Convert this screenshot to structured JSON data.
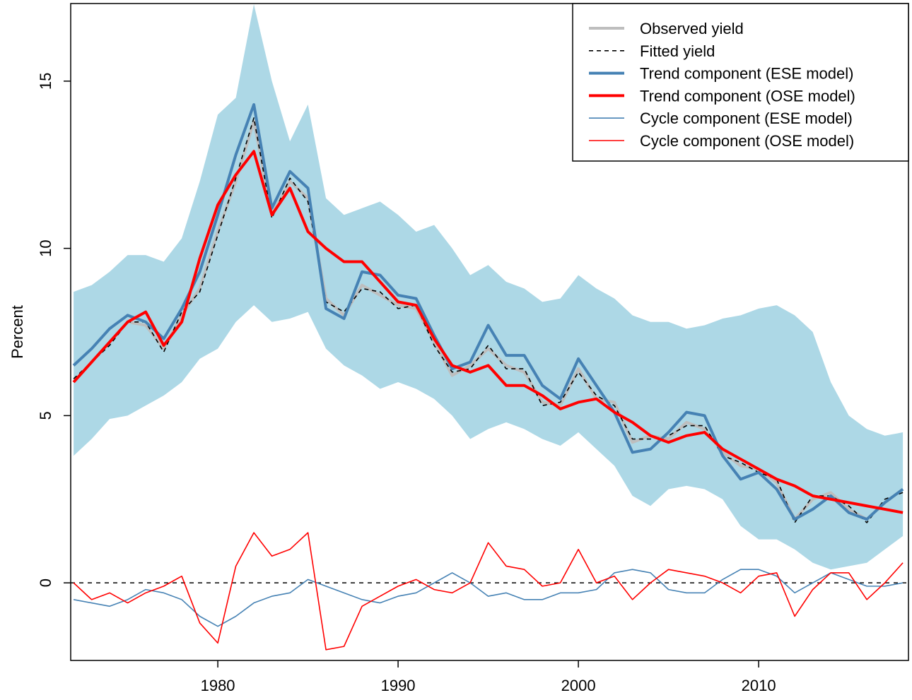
{
  "chart_data": {
    "type": "line",
    "y_label": "Percent",
    "xlim": [
      1971.84,
      2018.31
    ],
    "ylim": [
      -2.32,
      17.32
    ],
    "xticks": [
      1980,
      1990,
      2000,
      2010
    ],
    "yticks": [
      0,
      5,
      10,
      15
    ],
    "hline": 0,
    "legend": "top-right",
    "x": [
      1972,
      1973,
      1974,
      1975,
      1976,
      1977,
      1978,
      1979,
      1980,
      1981,
      1982,
      1983,
      1984,
      1985,
      1986,
      1987,
      1988,
      1989,
      1990,
      1991,
      1992,
      1993,
      1994,
      1995,
      1996,
      1997,
      1998,
      1999,
      2000,
      2001,
      2002,
      2003,
      2004,
      2005,
      2006,
      2007,
      2008,
      2009,
      2010,
      2011,
      2012,
      2013,
      2014,
      2015,
      2016,
      2017,
      2018
    ],
    "band": {
      "color": "#add8e6",
      "upper": [
        8.7,
        8.9,
        9.3,
        9.8,
        9.8,
        9.6,
        10.3,
        12.0,
        14.0,
        14.5,
        17.3,
        15.0,
        13.2,
        14.3,
        11.5,
        11.0,
        11.2,
        11.4,
        11.0,
        10.5,
        10.7,
        10.0,
        9.2,
        9.5,
        9.0,
        8.8,
        8.4,
        8.5,
        9.2,
        8.8,
        8.5,
        8.0,
        7.8,
        7.8,
        7.6,
        7.7,
        7.9,
        8.0,
        8.2,
        8.3,
        8.0,
        7.5,
        6.0,
        5.0,
        4.6,
        4.4,
        4.5
      ],
      "lower": [
        3.8,
        4.3,
        4.9,
        5.0,
        5.3,
        5.6,
        6.0,
        6.7,
        7.0,
        7.8,
        8.3,
        7.8,
        7.9,
        8.1,
        7.0,
        6.5,
        6.2,
        5.8,
        6.0,
        5.8,
        5.5,
        5.0,
        4.3,
        4.6,
        4.8,
        4.6,
        4.3,
        4.1,
        4.5,
        4.0,
        3.5,
        2.6,
        2.3,
        2.8,
        2.9,
        2.8,
        2.5,
        1.7,
        1.3,
        1.3,
        1.0,
        0.6,
        0.4,
        0.5,
        0.6,
        1.0,
        1.4
      ]
    },
    "series": [
      {
        "name": "Observed yield",
        "color": "#bebebe",
        "linewidth": 4,
        "linestyle": "solid",
        "values": [
          6.0,
          6.6,
          7.2,
          7.8,
          7.7,
          7.0,
          8.0,
          8.8,
          10.5,
          12.0,
          13.8,
          11.0,
          12.0,
          11.5,
          8.5,
          8.0,
          8.9,
          8.6,
          8.3,
          8.2,
          7.2,
          6.2,
          6.5,
          7.0,
          6.5,
          6.3,
          5.4,
          5.3,
          6.4,
          5.5,
          5.4,
          4.2,
          4.4,
          4.3,
          4.8,
          4.6,
          3.9,
          3.5,
          3.4,
          3.0,
          1.9,
          2.5,
          2.7,
          2.2,
          1.9,
          2.4,
          2.8
        ]
      },
      {
        "name": "Fitted yield",
        "color": "#000000",
        "linewidth": 1.6,
        "linestyle": "dashed",
        "values": [
          6.1,
          6.6,
          7.1,
          7.8,
          7.8,
          6.9,
          8.1,
          8.7,
          10.4,
          12.1,
          13.9,
          10.9,
          12.1,
          11.4,
          8.4,
          8.1,
          8.8,
          8.7,
          8.2,
          8.3,
          7.1,
          6.3,
          6.4,
          7.1,
          6.4,
          6.4,
          5.3,
          5.4,
          6.3,
          5.6,
          5.3,
          4.3,
          4.3,
          4.4,
          4.7,
          4.7,
          3.8,
          3.6,
          3.3,
          3.1,
          1.8,
          2.6,
          2.6,
          2.3,
          1.8,
          2.5,
          2.7
        ]
      },
      {
        "name": "Trend component (ESE model)",
        "color": "#4682b4",
        "linewidth": 4,
        "linestyle": "solid",
        "values": [
          6.5,
          7.0,
          7.6,
          8.0,
          7.8,
          7.3,
          8.2,
          9.3,
          11.0,
          12.8,
          14.3,
          11.2,
          12.3,
          11.8,
          8.2,
          7.9,
          9.3,
          9.2,
          8.6,
          8.5,
          7.4,
          6.4,
          6.6,
          7.7,
          6.8,
          6.8,
          5.9,
          5.5,
          6.7,
          5.9,
          5.1,
          3.9,
          4.0,
          4.5,
          5.1,
          5.0,
          3.8,
          3.1,
          3.3,
          2.8,
          1.9,
          2.2,
          2.6,
          2.1,
          1.9,
          2.4,
          2.8
        ]
      },
      {
        "name": "Trend component (OSE model)",
        "color": "#ff0000",
        "linewidth": 4,
        "linestyle": "solid",
        "values": [
          6.0,
          6.6,
          7.2,
          7.8,
          8.1,
          7.1,
          7.8,
          9.7,
          11.3,
          12.2,
          12.9,
          11.0,
          11.8,
          10.5,
          10.0,
          9.6,
          9.6,
          9.0,
          8.4,
          8.3,
          7.3,
          6.5,
          6.3,
          6.5,
          5.9,
          5.9,
          5.6,
          5.2,
          5.4,
          5.5,
          5.1,
          4.8,
          4.4,
          4.2,
          4.4,
          4.5,
          4.0,
          3.7,
          3.4,
          3.1,
          2.9,
          2.6,
          2.5,
          2.4,
          2.3,
          2.2,
          2.1
        ]
      },
      {
        "name": "Cycle component (ESE model)",
        "color": "#4682b4",
        "linewidth": 1.6,
        "linestyle": "solid",
        "values": [
          -0.5,
          -0.6,
          -0.7,
          -0.5,
          -0.2,
          -0.3,
          -0.5,
          -1.0,
          -1.3,
          -1.0,
          -0.6,
          -0.4,
          -0.3,
          0.1,
          -0.1,
          -0.3,
          -0.5,
          -0.6,
          -0.4,
          -0.3,
          0.0,
          0.3,
          0.0,
          -0.4,
          -0.3,
          -0.5,
          -0.5,
          -0.3,
          -0.3,
          -0.2,
          0.3,
          0.4,
          0.3,
          -0.2,
          -0.3,
          -0.3,
          0.1,
          0.4,
          0.4,
          0.2,
          -0.3,
          0.0,
          0.3,
          0.1,
          -0.1,
          -0.1,
          0.0
        ]
      },
      {
        "name": "Cycle component (OSE model)",
        "color": "#ff0000",
        "linewidth": 1.6,
        "linestyle": "solid",
        "values": [
          0.0,
          -0.5,
          -0.3,
          -0.6,
          -0.3,
          -0.1,
          0.2,
          -1.2,
          -1.8,
          0.5,
          1.5,
          0.8,
          1.0,
          1.5,
          -2.0,
          -1.9,
          -0.7,
          -0.4,
          -0.1,
          0.1,
          -0.2,
          -0.3,
          0.0,
          1.2,
          0.5,
          0.4,
          -0.1,
          0.0,
          1.0,
          0.0,
          0.2,
          -0.5,
          0.0,
          0.4,
          0.3,
          0.2,
          0.0,
          -0.3,
          0.2,
          0.3,
          -1.0,
          -0.2,
          0.3,
          0.3,
          -0.5,
          0.0,
          0.6
        ]
      }
    ]
  }
}
